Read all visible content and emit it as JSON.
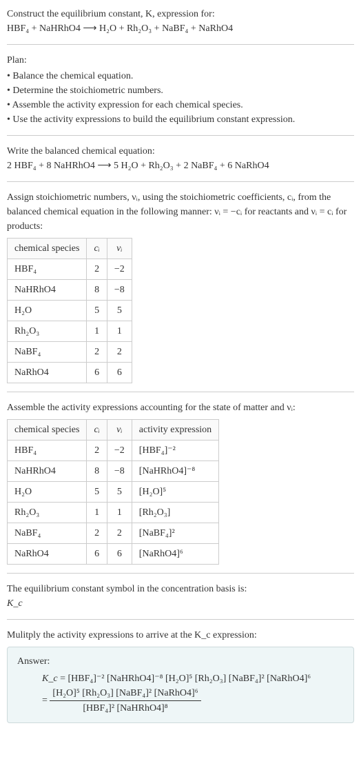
{
  "intro": {
    "line1": "Construct the equilibrium constant, K, expression for:",
    "equation": "HBF₄ + NaHRhO4 ⟶ H₂O + Rh₂O₃ + NaBF₄ + NaRhO4"
  },
  "plan": {
    "title": "Plan:",
    "items": [
      "Balance the chemical equation.",
      "Determine the stoichiometric numbers.",
      "Assemble the activity expression for each chemical species.",
      "Use the activity expressions to build the equilibrium constant expression."
    ]
  },
  "balanced": {
    "title": "Write the balanced chemical equation:",
    "equation": "2 HBF₄ + 8 NaHRhO4 ⟶ 5 H₂O + Rh₂O₃ + 2 NaBF₄ + 6 NaRhO4"
  },
  "stoich": {
    "intro": "Assign stoichiometric numbers, νᵢ, using the stoichiometric coefficients, cᵢ, from the balanced chemical equation in the following manner: νᵢ = −cᵢ for reactants and νᵢ = cᵢ for products:",
    "headers": [
      "chemical species",
      "cᵢ",
      "νᵢ"
    ],
    "rows": [
      [
        "HBF₄",
        "2",
        "−2"
      ],
      [
        "NaHRhO4",
        "8",
        "−8"
      ],
      [
        "H₂O",
        "5",
        "5"
      ],
      [
        "Rh₂O₃",
        "1",
        "1"
      ],
      [
        "NaBF₄",
        "2",
        "2"
      ],
      [
        "NaRhO4",
        "6",
        "6"
      ]
    ]
  },
  "activity": {
    "intro": "Assemble the activity expressions accounting for the state of matter and νᵢ:",
    "headers": [
      "chemical species",
      "cᵢ",
      "νᵢ",
      "activity expression"
    ],
    "rows": [
      [
        "HBF₄",
        "2",
        "−2",
        "[HBF₄]⁻²"
      ],
      [
        "NaHRhO4",
        "8",
        "−8",
        "[NaHRhO4]⁻⁸"
      ],
      [
        "H₂O",
        "5",
        "5",
        "[H₂O]⁵"
      ],
      [
        "Rh₂O₃",
        "1",
        "1",
        "[Rh₂O₃]"
      ],
      [
        "NaBF₄",
        "2",
        "2",
        "[NaBF₄]²"
      ],
      [
        "NaRhO4",
        "6",
        "6",
        "[NaRhO4]⁶"
      ]
    ]
  },
  "kc_symbol": {
    "line1": "The equilibrium constant symbol in the concentration basis is:",
    "line2": "K_c"
  },
  "multiply": {
    "intro": "Mulitply the activity expressions to arrive at the K_c expression:"
  },
  "answer": {
    "title": "Answer:",
    "lhs": "K_c",
    "flat": "= [HBF₄]⁻² [NaHRhO4]⁻⁸ [H₂O]⁵ [Rh₂O₃] [NaBF₄]² [NaRhO4]⁶",
    "numerator": "[H₂O]⁵ [Rh₂O₃] [NaBF₄]² [NaRhO4]⁶",
    "denominator": "[HBF₄]² [NaHRhO4]⁸"
  },
  "styling": {
    "background_color": "#ffffff",
    "text_color": "#333333",
    "hr_color": "#cccccc",
    "table_border_color": "#cccccc",
    "answer_bg": "#eef6f7",
    "answer_border": "#cdd9db",
    "base_font_size": 14,
    "font_family": "Georgia, serif"
  }
}
